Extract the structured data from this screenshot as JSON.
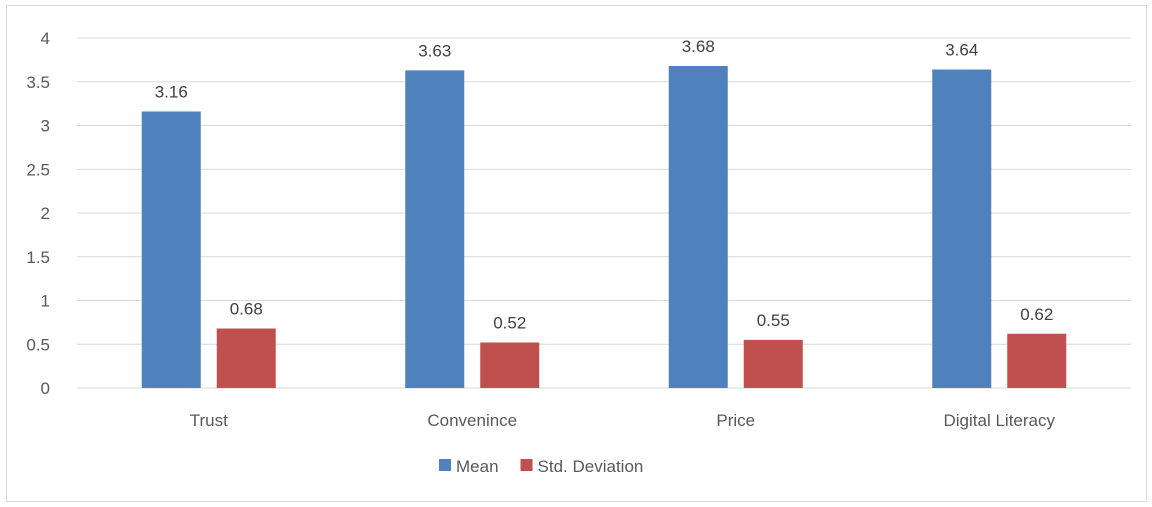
{
  "chart_data": {
    "type": "bar",
    "categories": [
      "Trust",
      "Convenince",
      "Price",
      "Digital Literacy"
    ],
    "series": [
      {
        "name": "Mean",
        "values": [
          3.16,
          3.63,
          3.68,
          3.64
        ],
        "color": "#4f81bd",
        "labels": [
          "3.16",
          "3.63",
          "3.68",
          "3.64"
        ]
      },
      {
        "name": "Std. Deviation",
        "values": [
          0.68,
          0.52,
          0.55,
          0.62
        ],
        "color": "#c0504d",
        "labels": [
          "0.68",
          "0.52",
          "0.55",
          "0.62"
        ]
      }
    ],
    "ylim": [
      0,
      4
    ],
    "yticks": [
      "0",
      "0.5",
      "1",
      "1.5",
      "2",
      "2.5",
      "3",
      "3.5",
      "4"
    ],
    "yticks_values": [
      0,
      0.5,
      1,
      1.5,
      2,
      2.5,
      3,
      3.5,
      4
    ],
    "grid": true,
    "gridline_color": "#d9d9d9",
    "legend_position": "bottom"
  }
}
